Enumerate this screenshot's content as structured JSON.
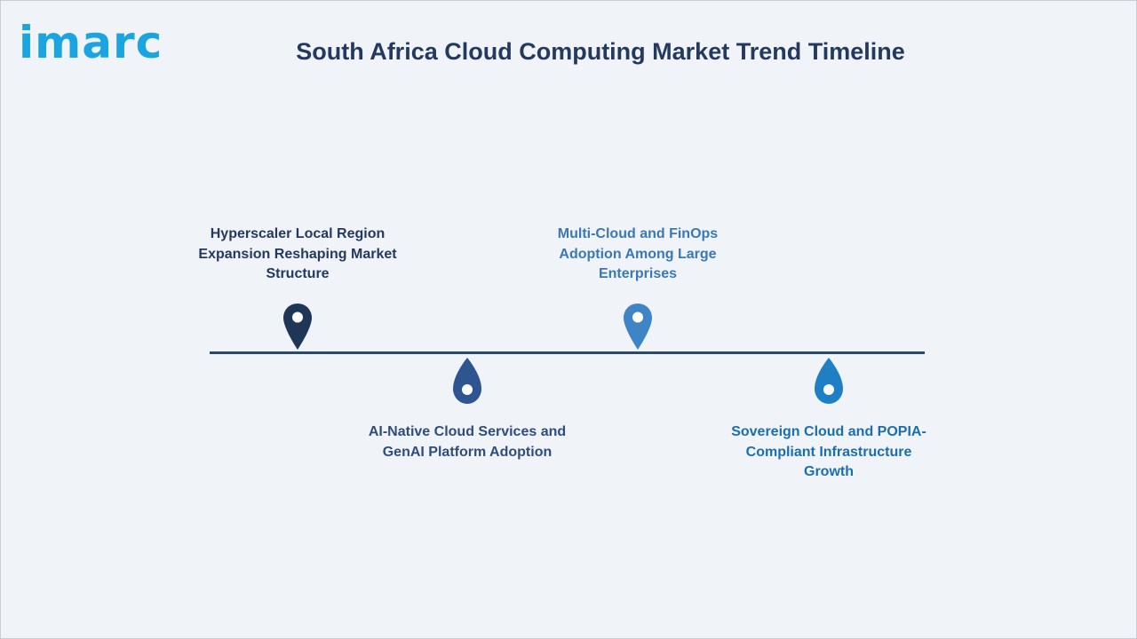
{
  "brand": {
    "logo_text": "imarc",
    "logo_color": "#1ba5e0"
  },
  "title": {
    "text": "South Africa Cloud Computing Market Trend Timeline",
    "color": "#24395e"
  },
  "timeline": {
    "line_color": "#2b4a68",
    "milestones": [
      {
        "label": "Hyperscaler Local Region Expansion Reshaping Market Structure",
        "position": "above",
        "pin_style": "map-pin",
        "color": "#1f3657",
        "text_color": "#24395e"
      },
      {
        "label": "AI-Native Cloud Services and GenAI Platform Adoption",
        "position": "below",
        "pin_style": "drop",
        "color": "#2e5590",
        "text_color": "#2e4d7c"
      },
      {
        "label": "Multi-Cloud and FinOps Adoption Among Large Enterprises",
        "position": "above",
        "pin_style": "map-pin",
        "color": "#3f84c4",
        "text_color": "#3a78b5"
      },
      {
        "label": "Sovereign Cloud and POPIA-Compliant Infrastructure Growth",
        "position": "below",
        "pin_style": "drop",
        "color": "#1f7fc5",
        "text_color": "#1b6eae"
      }
    ]
  }
}
